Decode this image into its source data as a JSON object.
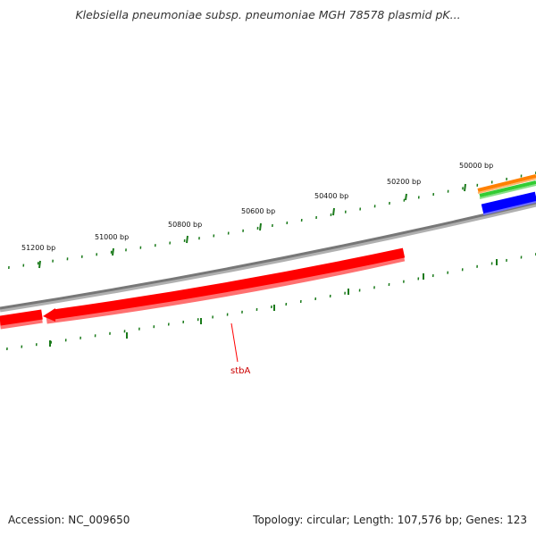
{
  "title": "Klebsiella pneumoniae subsp. pneumoniae MGH 78578 plasmid pK...",
  "footer": {
    "accession": "Accession: NC_009650",
    "summary": "Topology: circular; Length: 107,576 bp; Genes: 123"
  },
  "map": {
    "ticks": [
      {
        "label": "50000 bp"
      },
      {
        "label": "50200 bp"
      },
      {
        "label": "50400 bp"
      },
      {
        "label": "50600 bp"
      },
      {
        "label": "50800 bp"
      },
      {
        "label": "51000 bp"
      },
      {
        "label": "51200 bp"
      }
    ],
    "genes": [
      {
        "name": "stbA",
        "color": "#ff0000"
      }
    ],
    "colors": {
      "backbone": "#808080",
      "tick": "#1a7a1a",
      "forward_red": "#ff0000",
      "reverse_red": "#ff0000",
      "orange": "#ff8000",
      "green": "#33cc33",
      "blue": "#0000ff"
    }
  }
}
